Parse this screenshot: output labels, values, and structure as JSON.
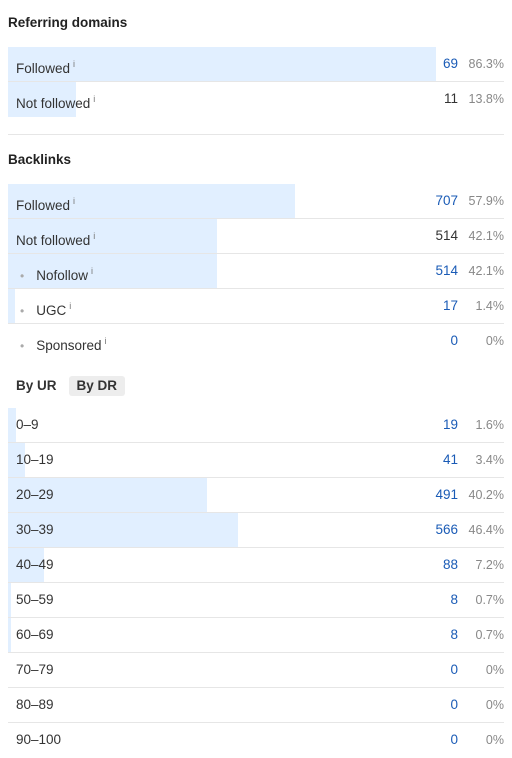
{
  "referring_domains": {
    "title": "Referring domains",
    "rows": [
      {
        "label": "Followed",
        "info": "i",
        "count": "69",
        "pct": "86.3%",
        "fraction": 0.863,
        "link": true
      },
      {
        "label": "Not followed",
        "info": "i",
        "count": "11",
        "pct": "13.8%",
        "fraction": 0.138,
        "link": false
      }
    ]
  },
  "backlinks": {
    "title": "Backlinks",
    "rows": [
      {
        "label": "Followed",
        "info": "i",
        "count": "707",
        "pct": "57.9%",
        "fraction": 0.579,
        "link": true,
        "sub": false
      },
      {
        "label": "Not followed",
        "info": "i",
        "count": "514",
        "pct": "42.1%",
        "fraction": 0.421,
        "link": false,
        "sub": false
      },
      {
        "label": "Nofollow",
        "info": "i",
        "count": "514",
        "pct": "42.1%",
        "fraction": 0.421,
        "link": true,
        "sub": true
      },
      {
        "label": "UGC",
        "info": "i",
        "count": "17",
        "pct": "1.4%",
        "fraction": 0.014,
        "link": true,
        "sub": true
      },
      {
        "label": "Sponsored",
        "info": "i",
        "count": "0",
        "pct": "0%",
        "fraction": 0,
        "link": true,
        "sub": true
      }
    ]
  },
  "rating_tabs": {
    "by_ur": "By UR",
    "by_dr": "By DR",
    "active": "by_dr"
  },
  "rating_rows": [
    {
      "label": "0–9",
      "count": "19",
      "pct": "1.6%",
      "fraction": 0.016
    },
    {
      "label": "10–19",
      "count": "41",
      "pct": "3.4%",
      "fraction": 0.034
    },
    {
      "label": "20–29",
      "count": "491",
      "pct": "40.2%",
      "fraction": 0.402
    },
    {
      "label": "30–39",
      "count": "566",
      "pct": "46.4%",
      "fraction": 0.464
    },
    {
      "label": "40–49",
      "count": "88",
      "pct": "7.2%",
      "fraction": 0.072
    },
    {
      "label": "50–59",
      "count": "8",
      "pct": "0.7%",
      "fraction": 0.007
    },
    {
      "label": "60–69",
      "count": "8",
      "pct": "0.7%",
      "fraction": 0.007
    },
    {
      "label": "70–79",
      "count": "0",
      "pct": "0%",
      "fraction": 0
    },
    {
      "label": "80–89",
      "count": "0",
      "pct": "0%",
      "fraction": 0
    },
    {
      "label": "90–100",
      "count": "0",
      "pct": "0%",
      "fraction": 0
    }
  ],
  "colors": {
    "bar": "#e1efff",
    "link": "#1a5bb6",
    "divider": "#e6e6e6"
  }
}
